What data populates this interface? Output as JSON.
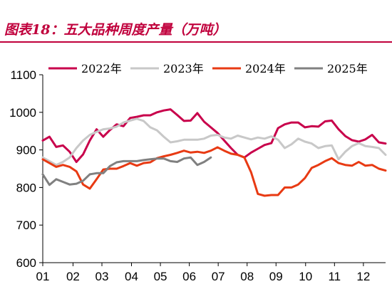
{
  "figure": {
    "title": "图表18：五大品种周度产量（万吨）"
  },
  "colors": {
    "title": "#c0003c",
    "axis": "#000000",
    "2022": "#c8004b",
    "2023": "#c8c8c8",
    "2024": "#e83a13",
    "2025": "#808080"
  },
  "chart_data": {
    "type": "line",
    "title": "",
    "xlabel": "",
    "ylabel": "",
    "x_axis": "week of year (1-52)",
    "xticks": [
      {
        "label": "01",
        "x": 1
      },
      {
        "label": "02",
        "x": 5.5
      },
      {
        "label": "03",
        "x": 9.8
      },
      {
        "label": "04",
        "x": 14.2
      },
      {
        "label": "05",
        "x": 18.5
      },
      {
        "label": "06",
        "x": 22.8
      },
      {
        "label": "07",
        "x": 27.1
      },
      {
        "label": "08",
        "x": 31.4
      },
      {
        "label": "09",
        "x": 35.7
      },
      {
        "label": "10",
        "x": 40.1
      },
      {
        "label": "11",
        "x": 44.4
      },
      {
        "label": "12",
        "x": 48.7
      }
    ],
    "yticks": [
      600,
      700,
      800,
      900,
      1000,
      1100
    ],
    "ylim": [
      600,
      1100
    ],
    "xlim": [
      1,
      52
    ],
    "grid": false,
    "legend": "top",
    "series": [
      {
        "name": "2022年",
        "color": "#c8004b",
        "points": [
          [
            1,
            925
          ],
          [
            2,
            935
          ],
          [
            3,
            908
          ],
          [
            4,
            912
          ],
          [
            5,
            895
          ],
          [
            6,
            868
          ],
          [
            7,
            888
          ],
          [
            8,
            925
          ],
          [
            9,
            955
          ],
          [
            10,
            935
          ],
          [
            11,
            953
          ],
          [
            12,
            968
          ],
          [
            13,
            963
          ],
          [
            14,
            985
          ],
          [
            15,
            988
          ],
          [
            16,
            992
          ],
          [
            17,
            992
          ],
          [
            18,
            1000
          ],
          [
            19,
            1005
          ],
          [
            20,
            1008
          ],
          [
            21,
            993
          ],
          [
            22,
            977
          ],
          [
            23,
            978
          ],
          [
            24,
            998
          ],
          [
            25,
            975
          ],
          [
            26,
            960
          ],
          [
            27,
            945
          ],
          [
            28,
            925
          ],
          [
            29,
            905
          ],
          [
            30,
            887
          ],
          [
            31,
            880
          ],
          [
            32,
            893
          ],
          [
            33,
            903
          ],
          [
            34,
            913
          ],
          [
            35,
            918
          ],
          [
            36,
            958
          ],
          [
            37,
            968
          ],
          [
            38,
            973
          ],
          [
            39,
            973
          ],
          [
            40,
            960
          ],
          [
            41,
            963
          ],
          [
            42,
            962
          ],
          [
            43,
            976
          ],
          [
            44,
            978
          ],
          [
            45,
            955
          ],
          [
            46,
            937
          ],
          [
            47,
            926
          ],
          [
            48,
            922
          ],
          [
            49,
            928
          ],
          [
            50,
            940
          ],
          [
            51,
            920
          ],
          [
            52,
            917
          ]
        ]
      },
      {
        "name": "2023年",
        "color": "#c8c8c8",
        "points": [
          [
            1,
            880
          ],
          [
            2,
            870
          ],
          [
            3,
            860
          ],
          [
            4,
            868
          ],
          [
            5,
            880
          ],
          [
            6,
            905
          ],
          [
            7,
            925
          ],
          [
            8,
            940
          ],
          [
            9,
            948
          ],
          [
            10,
            955
          ],
          [
            11,
            957
          ],
          [
            12,
            962
          ],
          [
            13,
            973
          ],
          [
            14,
            978
          ],
          [
            15,
            983
          ],
          [
            16,
            977
          ],
          [
            17,
            960
          ],
          [
            18,
            952
          ],
          [
            19,
            935
          ],
          [
            20,
            920
          ],
          [
            21,
            923
          ],
          [
            22,
            927
          ],
          [
            23,
            927
          ],
          [
            24,
            927
          ],
          [
            25,
            930
          ],
          [
            26,
            938
          ],
          [
            27,
            940
          ],
          [
            28,
            933
          ],
          [
            29,
            930
          ],
          [
            30,
            938
          ],
          [
            31,
            933
          ],
          [
            32,
            928
          ],
          [
            33,
            933
          ],
          [
            34,
            930
          ],
          [
            35,
            936
          ],
          [
            36,
            927
          ],
          [
            37,
            905
          ],
          [
            38,
            915
          ],
          [
            39,
            930
          ],
          [
            40,
            922
          ],
          [
            41,
            917
          ],
          [
            42,
            905
          ],
          [
            43,
            910
          ],
          [
            44,
            912
          ],
          [
            45,
            875
          ],
          [
            46,
            895
          ],
          [
            47,
            910
          ],
          [
            48,
            918
          ],
          [
            49,
            910
          ],
          [
            50,
            908
          ],
          [
            51,
            905
          ],
          [
            52,
            887
          ]
        ]
      },
      {
        "name": "2024年",
        "color": "#e83a13",
        "points": [
          [
            1,
            875
          ],
          [
            2,
            865
          ],
          [
            3,
            855
          ],
          [
            4,
            860
          ],
          [
            5,
            855
          ],
          [
            6,
            843
          ],
          [
            7,
            808
          ],
          [
            8,
            797
          ],
          [
            9,
            822
          ],
          [
            10,
            848
          ],
          [
            11,
            850
          ],
          [
            12,
            850
          ],
          [
            13,
            857
          ],
          [
            14,
            865
          ],
          [
            15,
            858
          ],
          [
            16,
            865
          ],
          [
            17,
            867
          ],
          [
            18,
            878
          ],
          [
            19,
            883
          ],
          [
            20,
            887
          ],
          [
            21,
            892
          ],
          [
            22,
            898
          ],
          [
            23,
            893
          ],
          [
            24,
            895
          ],
          [
            25,
            892
          ],
          [
            26,
            898
          ],
          [
            27,
            907
          ],
          [
            28,
            898
          ],
          [
            29,
            890
          ],
          [
            30,
            887
          ],
          [
            31,
            880
          ],
          [
            32,
            840
          ],
          [
            33,
            783
          ],
          [
            34,
            778
          ],
          [
            35,
            780
          ],
          [
            36,
            780
          ],
          [
            37,
            800
          ],
          [
            38,
            800
          ],
          [
            39,
            808
          ],
          [
            40,
            825
          ],
          [
            41,
            852
          ],
          [
            42,
            860
          ],
          [
            43,
            870
          ],
          [
            44,
            878
          ],
          [
            45,
            865
          ],
          [
            46,
            860
          ],
          [
            47,
            858
          ],
          [
            48,
            868
          ],
          [
            49,
            858
          ],
          [
            50,
            860
          ],
          [
            51,
            850
          ],
          [
            52,
            845
          ]
        ]
      },
      {
        "name": "2025年",
        "color": "#808080",
        "points": [
          [
            1,
            835
          ],
          [
            2,
            807
          ],
          [
            3,
            822
          ],
          [
            4,
            815
          ],
          [
            5,
            808
          ],
          [
            6,
            810
          ],
          [
            7,
            818
          ],
          [
            8,
            835
          ],
          [
            9,
            838
          ],
          [
            10,
            838
          ],
          [
            11,
            857
          ],
          [
            12,
            867
          ],
          [
            13,
            870
          ],
          [
            14,
            870
          ],
          [
            15,
            870
          ],
          [
            16,
            873
          ],
          [
            17,
            875
          ],
          [
            18,
            877
          ],
          [
            19,
            877
          ],
          [
            20,
            870
          ],
          [
            21,
            868
          ],
          [
            22,
            877
          ],
          [
            23,
            880
          ],
          [
            24,
            860
          ],
          [
            25,
            868
          ],
          [
            26,
            880
          ]
        ]
      }
    ]
  }
}
